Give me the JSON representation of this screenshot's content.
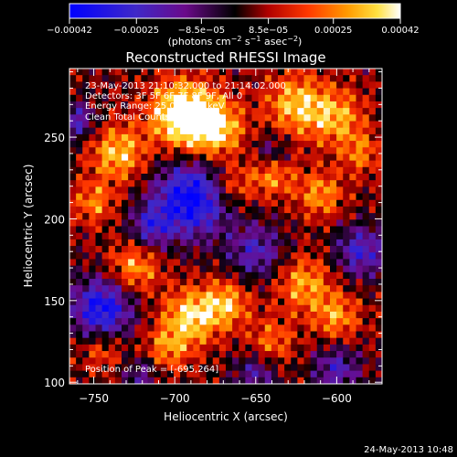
{
  "colorbar": {
    "tick_labels": [
      "−0.00042",
      "−0.00025",
      "−8.5e−05",
      "8.5e−05",
      "0.00025",
      "0.00042"
    ],
    "ticks": [
      -0.00042,
      -0.00025,
      -8.5e-05,
      8.5e-05,
      0.00025,
      0.00042
    ],
    "range": [
      -0.00042,
      0.00042
    ],
    "units_main": "(photons cm",
    "units_sup1": "−2",
    "units_mid": " s",
    "units_sup2": "−1",
    "units_end": " asec",
    "units_sup3": "−2",
    "units_close": ")"
  },
  "chart_data": {
    "type": "heatmap",
    "title": "Reconstructed RHESSI Image",
    "xlabel": "Heliocentric X (arcsec)",
    "ylabel": "Heliocentric Y (arcsec)",
    "xlim": [
      -765,
      -572
    ],
    "ylim": [
      99,
      292
    ],
    "x_ticks": [
      -750,
      -700,
      -650,
      -600
    ],
    "x_tick_labels": [
      "−750",
      "−700",
      "−650",
      "−600"
    ],
    "y_ticks": [
      100,
      150,
      200,
      250
    ],
    "y_tick_labels": [
      "100",
      "150",
      "200",
      "250"
    ],
    "colormap": "red-temperature (blue → purple → red → orange → yellow → white)",
    "value_range": [
      -0.00042,
      0.00042
    ],
    "peak_position": [
      -695,
      264
    ],
    "annotations": [
      "23-May-2013 21:10:32.000 to 21:14:02.000",
      "Detectors: 3F 5F 6F 7F 8F 9F, All 0",
      "Energy Range: 25.0 - 50.0 keV",
      "Clean     Total Counts: 8.70E+03",
      "Position of Peak = [-695,264]"
    ]
  },
  "footer": {
    "timestamp": "24-May-2013 10:48"
  }
}
